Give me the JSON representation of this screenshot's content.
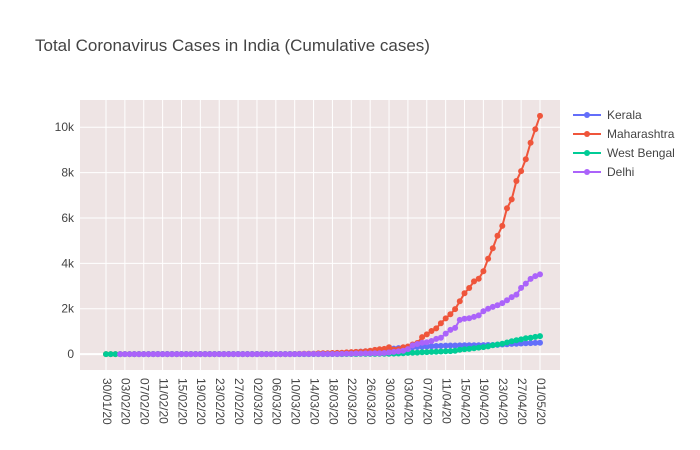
{
  "chart_data": {
    "type": "line",
    "title": "Total Coronavirus Cases in India (Cumulative cases)",
    "xlabel": "",
    "ylabel": "",
    "ylim": [
      -700,
      11200
    ],
    "yticks": [
      0,
      2000,
      4000,
      6000,
      8000,
      10000
    ],
    "ytick_labels": [
      "0",
      "2k",
      "4k",
      "6k",
      "8k",
      "10k"
    ],
    "xtick_labels": [
      "30/01/20",
      "03/02/20",
      "07/02/20",
      "11/02/20",
      "15/02/20",
      "19/02/20",
      "23/02/20",
      "27/02/20",
      "02/03/20",
      "06/03/20",
      "10/03/20",
      "14/03/20",
      "18/03/20",
      "22/03/20",
      "26/03/20",
      "30/03/20",
      "03/04/20",
      "07/04/20",
      "11/04/20",
      "15/04/20",
      "19/04/20",
      "23/04/20",
      "27/04/20",
      "01/05/20"
    ],
    "start_date": "30/01/20",
    "grid": true,
    "legend_position": "top-right",
    "background_color": "#eee4e4",
    "series": [
      {
        "name": "Kerala",
        "color": "#636efa",
        "values": [
          1,
          1,
          1,
          2,
          3,
          3,
          3,
          3,
          3,
          3,
          3,
          3,
          3,
          3,
          3,
          3,
          3,
          3,
          3,
          3,
          3,
          3,
          3,
          3,
          3,
          3,
          3,
          3,
          3,
          3,
          3,
          3,
          3,
          3,
          3,
          3,
          5,
          8,
          12,
          15,
          19,
          24,
          28,
          33,
          40,
          52,
          67,
          95,
          109,
          118,
          137,
          176,
          182,
          202,
          234,
          241,
          265,
          286,
          295,
          306,
          314,
          327,
          336,
          345,
          357,
          364,
          376,
          379,
          379,
          386,
          387,
          388,
          394,
          395,
          396,
          400,
          401,
          407,
          426,
          438,
          451,
          458,
          468,
          481,
          485,
          495,
          497
        ]
      },
      {
        "name": "Maharashtra",
        "color": "#ef553b",
        "values": [
          0,
          0,
          0,
          0,
          0,
          0,
          0,
          0,
          0,
          0,
          0,
          0,
          0,
          0,
          0,
          0,
          0,
          0,
          0,
          0,
          0,
          0,
          0,
          0,
          0,
          0,
          0,
          0,
          0,
          0,
          0,
          0,
          0,
          0,
          0,
          0,
          0,
          0,
          0,
          2,
          5,
          11,
          14,
          17,
          19,
          33,
          39,
          42,
          49,
          52,
          63,
          74,
          89,
          97,
          107,
          128,
          147,
          186,
          215,
          230,
          302,
          198,
          216,
          302,
          335,
          423,
          490,
          748,
          868,
          1018,
          1135,
          1364,
          1574,
          1761,
          1982,
          2334,
          2684,
          2916,
          3205,
          3323,
          3648,
          4203,
          4669,
          5218,
          5652,
          6427,
          6817,
          7628,
          8068,
          8590,
          9318,
          9915,
          10498
        ]
      },
      {
        "name": "West Bengal",
        "color": "#00cc96",
        "values": [
          0,
          0,
          0,
          0,
          0,
          0,
          0,
          0,
          0,
          0,
          0,
          0,
          0,
          0,
          0,
          0,
          0,
          0,
          0,
          0,
          0,
          0,
          0,
          0,
          0,
          0,
          0,
          0,
          0,
          0,
          0,
          0,
          0,
          0,
          0,
          0,
          0,
          0,
          0,
          0,
          0,
          0,
          0,
          0,
          0,
          0,
          0,
          1,
          1,
          1,
          2,
          3,
          4,
          7,
          9,
          9,
          10,
          10,
          15,
          17,
          18,
          22,
          26,
          37,
          53,
          63,
          69,
          80,
          91,
          99,
          103,
          116,
          126,
          134,
          152,
          190,
          213,
          231,
          255,
          287,
          310,
          339,
          392,
          423,
          456,
          514,
          571,
          611,
          649,
          697,
          725,
          758,
          795
        ]
      },
      {
        "name": "Delhi",
        "color": "#ab63fa",
        "values": [
          0,
          0,
          0,
          0,
          0,
          0,
          0,
          0,
          0,
          0,
          0,
          0,
          0,
          0,
          0,
          0,
          0,
          0,
          0,
          0,
          0,
          0,
          0,
          0,
          0,
          0,
          0,
          0,
          0,
          0,
          0,
          0,
          0,
          1,
          1,
          1,
          1,
          2,
          3,
          4,
          4,
          5,
          6,
          7,
          7,
          7,
          7,
          10,
          12,
          17,
          26,
          29,
          30,
          31,
          36,
          39,
          49,
          72,
          97,
          120,
          152,
          219,
          386,
          448,
          503,
          523,
          576,
          669,
          720,
          903,
          1069,
          1154,
          1510,
          1561,
          1578,
          1640,
          1707,
          1893,
          2003,
          2081,
          2156,
          2248,
          2376,
          2514,
          2625,
          2918,
          3108,
          3314,
          3439,
          3515
        ]
      }
    ]
  }
}
